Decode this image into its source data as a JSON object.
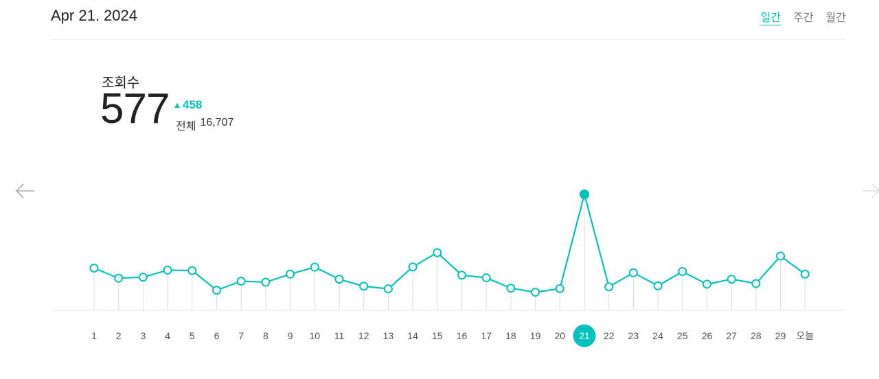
{
  "header": {
    "date": "Apr 21. 2024",
    "tabs": [
      {
        "label": "일간",
        "active": true
      },
      {
        "label": "주간",
        "active": false
      },
      {
        "label": "월간",
        "active": false
      }
    ]
  },
  "metric": {
    "label": "조회수",
    "value": "577",
    "change": "458",
    "total_label": "전체",
    "total_value": "16,707"
  },
  "nav": {
    "prev_icon": "arrow-left-icon",
    "next_icon": "arrow-right-icon"
  },
  "colors": {
    "accent": "#00c3bd",
    "stem": "#dddddd",
    "axis_label": "#555555"
  },
  "chart_data": {
    "type": "line",
    "categories": [
      "1",
      "2",
      "3",
      "4",
      "5",
      "6",
      "7",
      "8",
      "9",
      "10",
      "11",
      "12",
      "13",
      "14",
      "15",
      "16",
      "17",
      "18",
      "19",
      "20",
      "21",
      "22",
      "23",
      "24",
      "25",
      "26",
      "27",
      "28",
      "29",
      "오늘"
    ],
    "values": [
      210,
      160,
      165,
      200,
      198,
      100,
      145,
      140,
      180,
      215,
      155,
      120,
      107,
      216,
      287,
      175,
      162,
      110,
      90,
      108,
      577,
      117,
      187,
      122,
      193,
      130,
      155,
      133,
      270,
      180
    ],
    "highlight_index": 20,
    "ylim": [
      0,
      577
    ],
    "grid": false,
    "legend": "none"
  }
}
